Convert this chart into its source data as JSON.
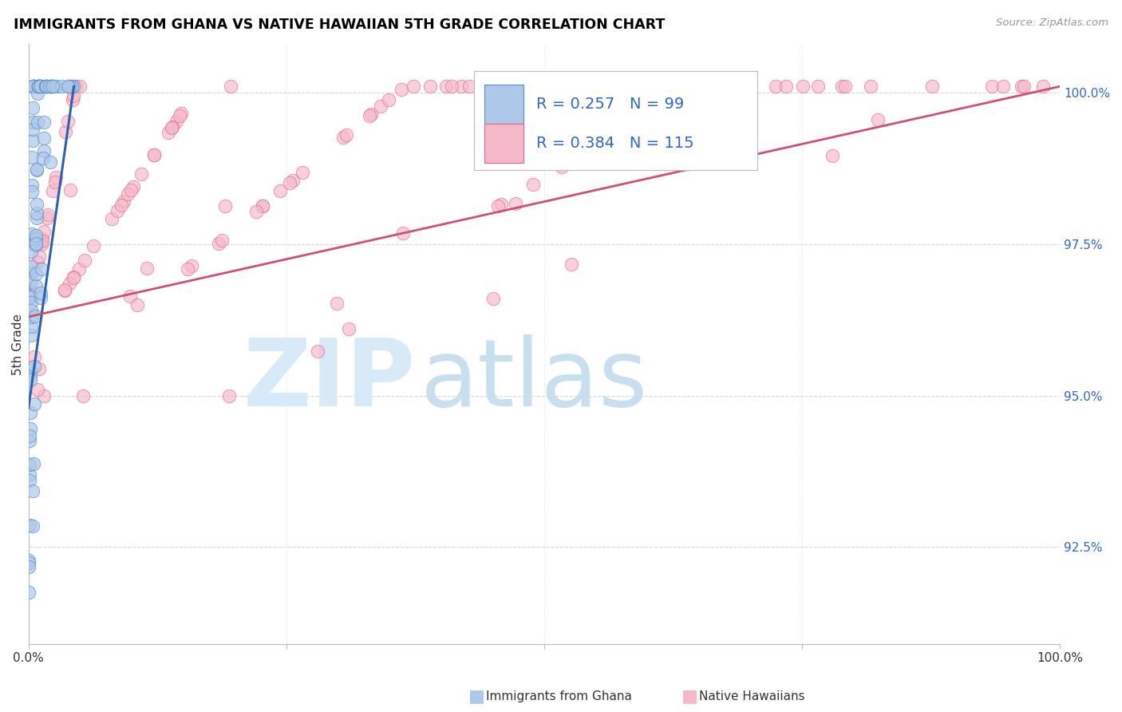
{
  "title": "IMMIGRANTS FROM GHANA VS NATIVE HAWAIIAN 5TH GRADE CORRELATION CHART",
  "source": "Source: ZipAtlas.com",
  "ylabel": "5th Grade",
  "ylabel_ticks": [
    "92.5%",
    "95.0%",
    "97.5%",
    "100.0%"
  ],
  "ylabel_values": [
    0.925,
    0.95,
    0.975,
    1.0
  ],
  "xmin": 0.0,
  "xmax": 1.0,
  "ymin": 0.909,
  "ymax": 1.008,
  "ghana_R": 0.257,
  "ghana_N": 99,
  "hawaiian_R": 0.384,
  "hawaiian_N": 115,
  "ghana_color": "#adc8e8",
  "hawaiian_color": "#f5b8c8",
  "ghana_edge_color": "#5b8dc8",
  "hawaiian_edge_color": "#e06888",
  "ghana_line_color": "#3060b0",
  "hawaiian_line_color": "#d05070",
  "legend_color": "#3366cc",
  "watermark_zip_color": "#d8eaf8",
  "watermark_atlas_color": "#c8dff0",
  "ghana_line_x0": 0.0,
  "ghana_line_y0": 0.948,
  "ghana_line_x1": 0.044,
  "ghana_line_y1": 1.001,
  "hawaiian_line_x0": 0.0,
  "hawaiian_line_y0": 0.963,
  "hawaiian_line_x1": 1.0,
  "hawaiian_line_y1": 1.001
}
